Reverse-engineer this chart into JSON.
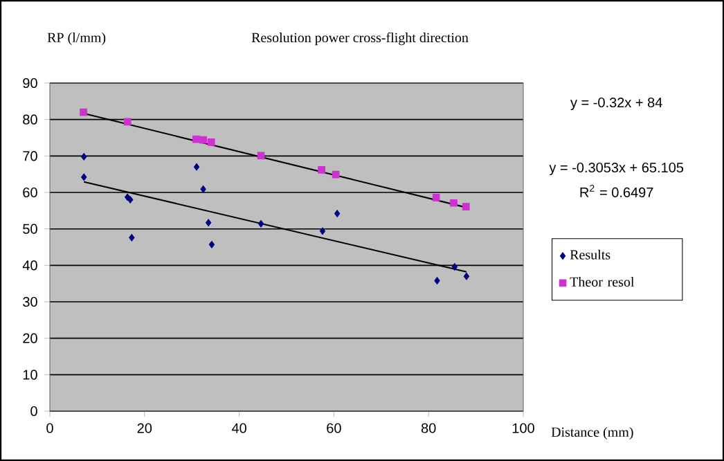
{
  "chart_data": {
    "type": "scatter",
    "title": "Resolution power cross-flight direction",
    "xlabel": "Distance (mm)",
    "ylabel": "RP (l/mm)",
    "xlim": [
      0,
      100
    ],
    "xticks": [
      0,
      20,
      40,
      60,
      80,
      100
    ],
    "ylim": [
      0,
      90
    ],
    "yticks": [
      0,
      10,
      20,
      30,
      40,
      50,
      60,
      70,
      80,
      90
    ],
    "grid": "y",
    "legend": "right",
    "annotations": [
      "y = -0.32x + 84",
      "y = -0.3053x + 65.105",
      "R$^{2}$ = 0.6497"
    ],
    "series": [
      {
        "name": "Results",
        "color": "#000080",
        "marker": "diamond",
        "x": [
          7.2,
          7.2,
          16.4,
          17.0,
          17.3,
          31.0,
          32.4,
          33.5,
          34.2,
          44.6,
          57.6,
          60.7,
          81.8,
          85.5,
          88.0
        ],
        "values": [
          69.8,
          64.2,
          58.7,
          58.0,
          47.6,
          67.0,
          60.9,
          51.7,
          45.7,
          51.4,
          49.4,
          54.2,
          35.8,
          39.6,
          37.0
        ]
      },
      {
        "name": "Theor resol",
        "color": "#cc33cc",
        "marker": "square",
        "x": [
          7.1,
          16.4,
          30.9,
          32.4,
          34.1,
          44.6,
          57.4,
          60.4,
          81.6,
          85.3,
          87.9
        ],
        "values": [
          82.0,
          79.4,
          74.6,
          74.4,
          73.8,
          70.1,
          66.2,
          64.9,
          58.6,
          57.1,
          56.1
        ]
      },
      {
        "type": "line",
        "color": "#000000",
        "marker": "none",
        "x": [
          7.2,
          88.0
        ],
        "values": [
          62.9,
          38.2
        ]
      },
      {
        "type": "line",
        "color": "#000000",
        "marker": "none",
        "x": [
          7.1,
          87.9
        ],
        "values": [
          81.7,
          55.9
        ]
      }
    ]
  }
}
